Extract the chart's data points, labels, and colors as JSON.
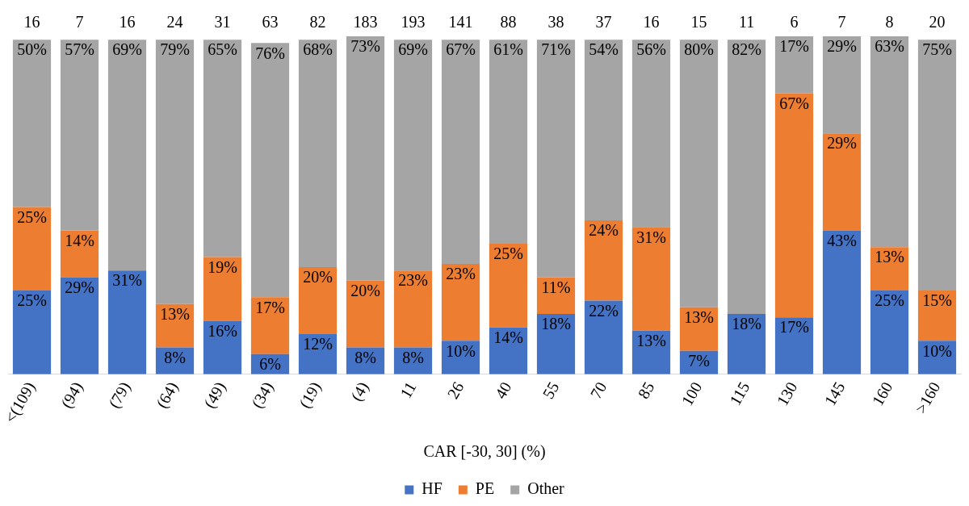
{
  "chart_data": {
    "type": "bar",
    "stacked": true,
    "xlabel": "CAR [-30, 30] (%)",
    "categories": [
      "<(109)",
      "(94)",
      "(79)",
      "(64)",
      "(49)",
      "(34)",
      "(19)",
      "(4)",
      "11",
      "26",
      "40",
      "55",
      "70",
      "85",
      "100",
      "115",
      "130",
      "145",
      "160",
      ">160"
    ],
    "series": [
      {
        "name": "HF",
        "color": "#4472c4",
        "values": [
          25,
          29,
          31,
          8,
          16,
          6,
          12,
          8,
          8,
          10,
          14,
          18,
          22,
          13,
          7,
          18,
          17,
          43,
          25,
          10
        ],
        "value_labels": [
          "25%",
          "29%",
          "31%",
          "8%",
          "16%",
          "6%",
          "12%",
          "8%",
          "8%",
          "10%",
          "14%",
          "18%",
          "22%",
          "13%",
          "7%",
          "18%",
          "17%",
          "43%",
          "25%",
          "10%"
        ]
      },
      {
        "name": "PE",
        "color": "#ed7d31",
        "values": [
          25,
          14,
          null,
          13,
          19,
          17,
          20,
          20,
          23,
          23,
          25,
          11,
          24,
          31,
          13,
          null,
          67,
          29,
          13,
          15
        ],
        "value_labels": [
          "25%",
          "14%",
          null,
          "13%",
          "19%",
          "17%",
          "20%",
          "20%",
          "23%",
          "23%",
          "25%",
          "11%",
          "24%",
          "31%",
          "13%",
          null,
          "67%",
          "29%",
          "13%",
          "15%"
        ]
      },
      {
        "name": "Other",
        "color": "#a5a5a5",
        "values": [
          50,
          57,
          69,
          79,
          65,
          76,
          68,
          73,
          69,
          67,
          61,
          71,
          54,
          56,
          80,
          82,
          17,
          29,
          63,
          75
        ],
        "value_labels": [
          "50%",
          "57%",
          "69%",
          "79%",
          "65%",
          "76%",
          "68%",
          "73%",
          "69%",
          "67%",
          "61%",
          "71%",
          "54%",
          "56%",
          "80%",
          "82%",
          "17%",
          "29%",
          "63%",
          "75%"
        ]
      }
    ],
    "annotations": [
      "16",
      "7",
      "16",
      "24",
      "31",
      "63",
      "82",
      "183",
      "193",
      "141",
      "88",
      "38",
      "37",
      "16",
      "15",
      "11",
      "6",
      "7",
      "8",
      "20"
    ],
    "ylim": [
      0,
      101
    ],
    "tick_labels": "x",
    "grid": false,
    "legend": "bottom"
  }
}
